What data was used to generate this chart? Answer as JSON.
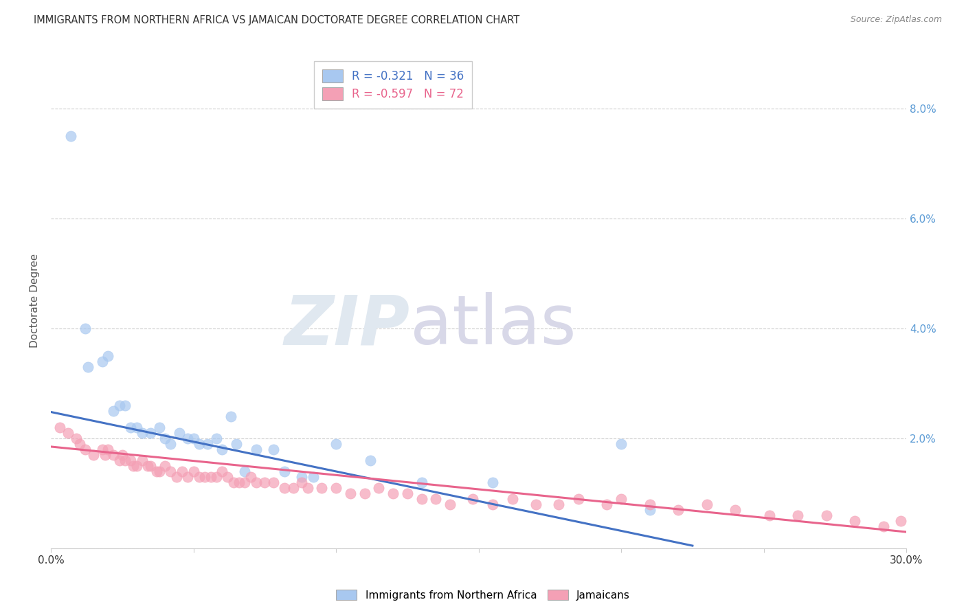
{
  "title": "IMMIGRANTS FROM NORTHERN AFRICA VS JAMAICAN DOCTORATE DEGREE CORRELATION CHART",
  "source": "Source: ZipAtlas.com",
  "ylabel": "Doctorate Degree",
  "xlim": [
    0.0,
    0.3
  ],
  "ylim": [
    0.0,
    0.09
  ],
  "xticks": [
    0.0,
    0.05,
    0.1,
    0.15,
    0.2,
    0.25,
    0.3
  ],
  "xtick_labels": [
    "0.0%",
    "",
    "",
    "",
    "",
    "",
    "30.0%"
  ],
  "yticks": [
    0.0,
    0.02,
    0.04,
    0.06,
    0.08
  ],
  "ytick_labels_right": [
    "",
    "2.0%",
    "4.0%",
    "6.0%",
    "8.0%"
  ],
  "legend_blue_label": "Immigrants from Northern Africa",
  "legend_pink_label": "Jamaicans",
  "legend_text_blue": "R = -0.321   N = 36",
  "legend_text_pink": "R = -0.597   N = 72",
  "blue_color": "#a8c8f0",
  "pink_color": "#f4a0b5",
  "blue_line_color": "#4472c4",
  "pink_line_color": "#e8648c",
  "blue_scatter_x": [
    0.007,
    0.012,
    0.013,
    0.018,
    0.02,
    0.022,
    0.024,
    0.026,
    0.028,
    0.03,
    0.032,
    0.035,
    0.038,
    0.04,
    0.042,
    0.045,
    0.048,
    0.05,
    0.052,
    0.055,
    0.058,
    0.06,
    0.063,
    0.065,
    0.068,
    0.072,
    0.078,
    0.082,
    0.088,
    0.092,
    0.1,
    0.112,
    0.13,
    0.155,
    0.2,
    0.21
  ],
  "blue_scatter_y": [
    0.075,
    0.04,
    0.033,
    0.034,
    0.035,
    0.025,
    0.026,
    0.026,
    0.022,
    0.022,
    0.021,
    0.021,
    0.022,
    0.02,
    0.019,
    0.021,
    0.02,
    0.02,
    0.019,
    0.019,
    0.02,
    0.018,
    0.024,
    0.019,
    0.014,
    0.018,
    0.018,
    0.014,
    0.013,
    0.013,
    0.019,
    0.016,
    0.012,
    0.012,
    0.019,
    0.007
  ],
  "pink_scatter_x": [
    0.003,
    0.006,
    0.009,
    0.01,
    0.012,
    0.015,
    0.018,
    0.019,
    0.02,
    0.022,
    0.024,
    0.025,
    0.026,
    0.028,
    0.029,
    0.03,
    0.032,
    0.034,
    0.035,
    0.037,
    0.038,
    0.04,
    0.042,
    0.044,
    0.046,
    0.048,
    0.05,
    0.052,
    0.054,
    0.056,
    0.058,
    0.06,
    0.062,
    0.064,
    0.066,
    0.068,
    0.07,
    0.072,
    0.075,
    0.078,
    0.082,
    0.085,
    0.088,
    0.09,
    0.095,
    0.1,
    0.105,
    0.11,
    0.115,
    0.12,
    0.125,
    0.13,
    0.135,
    0.14,
    0.148,
    0.155,
    0.162,
    0.17,
    0.178,
    0.185,
    0.195,
    0.2,
    0.21,
    0.22,
    0.23,
    0.24,
    0.252,
    0.262,
    0.272,
    0.282,
    0.292,
    0.298
  ],
  "pink_scatter_y": [
    0.022,
    0.021,
    0.02,
    0.019,
    0.018,
    0.017,
    0.018,
    0.017,
    0.018,
    0.017,
    0.016,
    0.017,
    0.016,
    0.016,
    0.015,
    0.015,
    0.016,
    0.015,
    0.015,
    0.014,
    0.014,
    0.015,
    0.014,
    0.013,
    0.014,
    0.013,
    0.014,
    0.013,
    0.013,
    0.013,
    0.013,
    0.014,
    0.013,
    0.012,
    0.012,
    0.012,
    0.013,
    0.012,
    0.012,
    0.012,
    0.011,
    0.011,
    0.012,
    0.011,
    0.011,
    0.011,
    0.01,
    0.01,
    0.011,
    0.01,
    0.01,
    0.009,
    0.009,
    0.008,
    0.009,
    0.008,
    0.009,
    0.008,
    0.008,
    0.009,
    0.008,
    0.009,
    0.008,
    0.007,
    0.008,
    0.007,
    0.006,
    0.006,
    0.006,
    0.005,
    0.004,
    0.005
  ],
  "blue_trendline_x": [
    0.0,
    0.225
  ],
  "blue_trendline_y": [
    0.0248,
    0.0005
  ],
  "pink_trendline_x": [
    0.0,
    0.3
  ],
  "pink_trendline_y": [
    0.0185,
    0.003
  ]
}
